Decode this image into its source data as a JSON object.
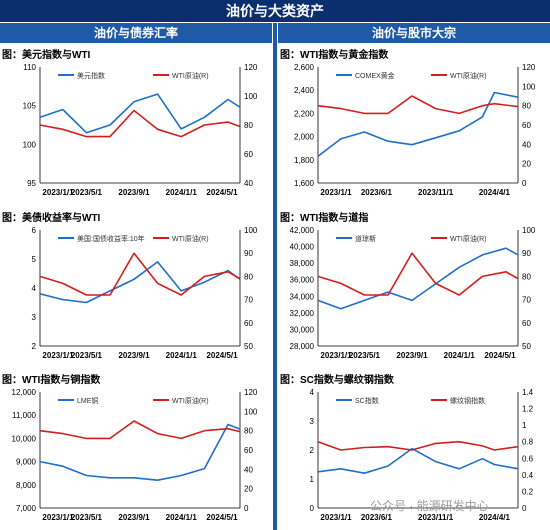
{
  "header": {
    "title": "油价与大类资产",
    "left_section": "油价与债券汇率",
    "right_section": "油价与股市大宗"
  },
  "watermark": "公众号 · 能源研发中心",
  "colors": {
    "blue": "#1f6fc8",
    "red": "#d21e1e",
    "header": "#0b2e6f",
    "section": "#1f5aa6"
  },
  "chart_data": [
    {
      "type": "line",
      "title": "图：美元指数与WTI",
      "xticks": [
        "2023/1/1",
        "2023/5/1",
        "2023/9/1",
        "2024/1/1",
        "2024/5/1"
      ],
      "x": [
        "2023/1/1",
        "2023/3/1",
        "2023/5/1",
        "2023/7/1",
        "2023/9/1",
        "2023/11/1",
        "2024/1/1",
        "2024/3/1",
        "2024/5/1",
        "2024/6/1"
      ],
      "left_axis": {
        "ticks": [
          "95",
          "100",
          "105",
          "110"
        ],
        "range": [
          95,
          110
        ]
      },
      "right_axis": {
        "ticks": [
          "40",
          "60",
          "80",
          "100",
          "120"
        ],
        "range": [
          40,
          120
        ]
      },
      "series": [
        {
          "name": "美元指数",
          "axis": "left",
          "values": [
            103.5,
            104.5,
            101.5,
            102.5,
            105.5,
            106.5,
            102.0,
            103.5,
            105.8,
            104.8
          ]
        },
        {
          "name": "WTI原油(R)",
          "axis": "right",
          "values": [
            80,
            77,
            72,
            72,
            90,
            77,
            72,
            80,
            82,
            79
          ]
        }
      ]
    },
    {
      "type": "line",
      "title": "图：WTI指数与黄金指数",
      "xticks": [
        "2023/1/1",
        "2023/6/1",
        "2023/11/1",
        "2024/4/1"
      ],
      "x": [
        "2023/1/1",
        "2023/3/1",
        "2023/5/1",
        "2023/7/1",
        "2023/9/1",
        "2023/11/1",
        "2024/1/1",
        "2024/3/1",
        "2024/4/1",
        "2024/6/1"
      ],
      "left_axis": {
        "ticks": [
          "1,600",
          "1,800",
          "2,000",
          "2,200",
          "2,400",
          "2,600"
        ],
        "range": [
          1600,
          2600
        ]
      },
      "right_axis": {
        "ticks": [
          "0",
          "20",
          "40",
          "60",
          "80",
          "100",
          "120"
        ],
        "range": [
          0,
          120
        ]
      },
      "series": [
        {
          "name": "COMEX黄金",
          "axis": "left",
          "values": [
            1830,
            1980,
            2040,
            1960,
            1930,
            1990,
            2050,
            2170,
            2380,
            2340
          ]
        },
        {
          "name": "WTI原油(R)",
          "axis": "right",
          "values": [
            80,
            77,
            72,
            72,
            90,
            77,
            72,
            80,
            82,
            79
          ]
        }
      ]
    },
    {
      "type": "line",
      "title": "图：美债收益率与WTI",
      "xticks": [
        "2023/1/1",
        "2023/5/1",
        "2023/9/1",
        "2024/1/1",
        "2024/5/1"
      ],
      "x": [
        "2023/1/1",
        "2023/3/1",
        "2023/5/1",
        "2023/7/1",
        "2023/9/1",
        "2023/11/1",
        "2024/1/1",
        "2024/3/1",
        "2024/5/1",
        "2024/6/1"
      ],
      "left_axis": {
        "ticks": [
          "2",
          "3",
          "4",
          "5",
          "6"
        ],
        "range": [
          2,
          6
        ]
      },
      "right_axis": {
        "ticks": [
          "50",
          "60",
          "70",
          "80",
          "90",
          "100"
        ],
        "range": [
          50,
          100
        ]
      },
      "series": [
        {
          "name": "美国:国债收益率:10年",
          "axis": "left",
          "values": [
            3.8,
            3.6,
            3.5,
            3.9,
            4.3,
            4.9,
            3.9,
            4.2,
            4.6,
            4.3
          ]
        },
        {
          "name": "WTI原油(R)",
          "axis": "right",
          "values": [
            80,
            77,
            72,
            72,
            90,
            77,
            72,
            80,
            82,
            79
          ]
        }
      ]
    },
    {
      "type": "line",
      "title": "图：WTI指数与道指",
      "xticks": [
        "2023/1/1",
        "2023/5/1",
        "2023/9/1",
        "2024/1/1",
        "2024/5/1"
      ],
      "x": [
        "2023/1/1",
        "2023/3/1",
        "2023/5/1",
        "2023/7/1",
        "2023/9/1",
        "2023/11/1",
        "2024/1/1",
        "2024/3/1",
        "2024/5/1",
        "2024/6/1"
      ],
      "left_axis": {
        "ticks": [
          "28,000",
          "30,000",
          "32,000",
          "34,000",
          "36,000",
          "38,000",
          "40,000",
          "42,000"
        ],
        "range": [
          28000,
          42000
        ]
      },
      "right_axis": {
        "ticks": [
          "50",
          "60",
          "70",
          "80",
          "90",
          "100"
        ],
        "range": [
          50,
          100
        ]
      },
      "series": [
        {
          "name": "道琼斯",
          "axis": "left",
          "values": [
            33500,
            32500,
            33500,
            34500,
            33500,
            35500,
            37500,
            39000,
            39800,
            39000
          ]
        },
        {
          "name": "WTI原油(R)",
          "axis": "right",
          "values": [
            80,
            77,
            72,
            72,
            90,
            77,
            72,
            80,
            82,
            79
          ]
        }
      ]
    },
    {
      "type": "line",
      "title": "图：WTI指数与铜指数",
      "xticks": [
        "2023/1/1",
        "2023/5/1",
        "2023/9/1",
        "2024/1/1",
        "2024/5/1"
      ],
      "x": [
        "2023/1/1",
        "2023/3/1",
        "2023/5/1",
        "2023/7/1",
        "2023/9/1",
        "2023/11/1",
        "2024/1/1",
        "2024/3/1",
        "2024/5/1",
        "2024/6/1"
      ],
      "left_axis": {
        "ticks": [
          "7,000",
          "8,000",
          "9,000",
          "10,000",
          "11,000",
          "12,000"
        ],
        "range": [
          7000,
          12000
        ]
      },
      "right_axis": {
        "ticks": [
          "0",
          "20",
          "40",
          "60",
          "80",
          "100",
          "120"
        ],
        "range": [
          0,
          120
        ]
      },
      "series": [
        {
          "name": "LME铜",
          "axis": "left",
          "values": [
            9000,
            8800,
            8400,
            8300,
            8300,
            8200,
            8400,
            8700,
            10600,
            10400
          ]
        },
        {
          "name": "WTI原油(R)",
          "axis": "right",
          "values": [
            80,
            77,
            72,
            72,
            90,
            77,
            72,
            80,
            82,
            79
          ]
        }
      ]
    },
    {
      "type": "line",
      "title": "图：SC指数与螺纹钢指数",
      "xticks": [
        "2023/1/1",
        "2023/6/1",
        "2023/11/1",
        "2024/4/1"
      ],
      "x": [
        "2023/1/1",
        "2023/3/1",
        "2023/5/1",
        "2023/7/1",
        "2023/9/1",
        "2023/11/1",
        "2024/1/1",
        "2024/3/1",
        "2024/4/1",
        "2024/6/1"
      ],
      "left_axis": {
        "ticks": [
          "0",
          "1",
          "2",
          "3",
          "4"
        ],
        "range": [
          0,
          4
        ]
      },
      "right_axis": {
        "ticks": [
          "0",
          "0.2",
          "0.4",
          "0.6",
          "0.8",
          "1",
          "1.2",
          "1.4"
        ],
        "range": [
          0,
          1.4
        ]
      },
      "series": [
        {
          "name": "SC指数",
          "axis": "left",
          "values": [
            1.25,
            1.35,
            1.2,
            1.45,
            2.05,
            1.6,
            1.35,
            1.7,
            1.5,
            1.35
          ]
        },
        {
          "name": "螺纹钢指数",
          "axis": "right",
          "values": [
            0.8,
            0.7,
            0.73,
            0.74,
            0.7,
            0.78,
            0.8,
            0.75,
            0.7,
            0.74
          ]
        }
      ]
    }
  ]
}
